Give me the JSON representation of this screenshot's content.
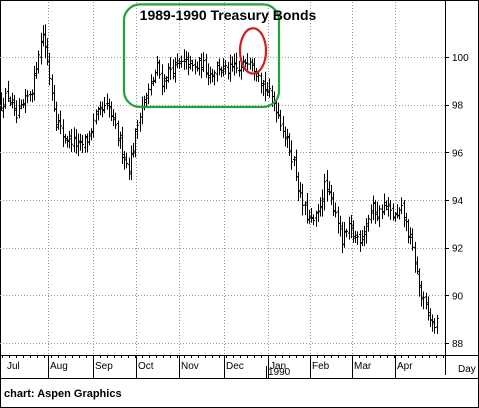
{
  "chart_data": {
    "type": "ohlc",
    "title": "1989-1990 Treasury Bonds",
    "y_ticks": [
      88,
      90,
      92,
      94,
      96,
      98,
      100
    ],
    "ylim": [
      87.5,
      102.3
    ],
    "month_labels": [
      "Jul",
      "Aug",
      "Sep",
      "Oct",
      "Nov",
      "Dec",
      "Jan",
      "Feb",
      "Mar",
      "Apr"
    ],
    "year_label": "1990",
    "x_axis_unit": "Day",
    "grid": true,
    "price_path": [
      [
        0,
        98.0
      ],
      [
        8,
        98.4
      ],
      [
        16,
        97.4
      ],
      [
        25,
        98.1
      ],
      [
        33,
        98.8
      ],
      [
        38,
        100.2
      ],
      [
        43,
        101.0
      ],
      [
        49,
        99.3
      ],
      [
        56,
        97.4
      ],
      [
        64,
        96.6
      ],
      [
        72,
        96.5
      ],
      [
        80,
        96.2
      ],
      [
        88,
        96.6
      ],
      [
        94,
        97.3
      ],
      [
        100,
        97.7
      ],
      [
        108,
        97.9
      ],
      [
        115,
        97.0
      ],
      [
        123,
        96.0
      ],
      [
        128,
        95.3
      ],
      [
        134,
        96.4
      ],
      [
        140,
        97.8
      ],
      [
        146,
        98.3
      ],
      [
        152,
        98.9
      ],
      [
        157,
        99.6
      ],
      [
        162,
        98.9
      ],
      [
        170,
        99.5
      ],
      [
        178,
        99.6
      ],
      [
        186,
        99.8
      ],
      [
        194,
        99.5
      ],
      [
        202,
        99.7
      ],
      [
        210,
        99.3
      ],
      [
        218,
        99.6
      ],
      [
        226,
        99.4
      ],
      [
        234,
        99.5
      ],
      [
        240,
        99.4
      ],
      [
        246,
        99.9
      ],
      [
        250,
        100.0
      ],
      [
        254,
        99.6
      ],
      [
        258,
        99.5
      ],
      [
        262,
        98.9
      ],
      [
        266,
        98.6
      ],
      [
        270,
        98.4
      ],
      [
        276,
        97.9
      ],
      [
        282,
        97.1
      ],
      [
        288,
        96.3
      ],
      [
        294,
        95.5
      ],
      [
        300,
        94.1
      ],
      [
        306,
        93.4
      ],
      [
        312,
        93.0
      ],
      [
        318,
        93.4
      ],
      [
        324,
        94.6
      ],
      [
        330,
        94.0
      ],
      [
        336,
        93.5
      ],
      [
        342,
        92.2
      ],
      [
        348,
        92.8
      ],
      [
        354,
        92.5
      ],
      [
        360,
        92.4
      ],
      [
        366,
        93.0
      ],
      [
        372,
        93.7
      ],
      [
        378,
        93.4
      ],
      [
        384,
        93.8
      ],
      [
        390,
        93.5
      ],
      [
        396,
        93.2
      ],
      [
        402,
        93.6
      ],
      [
        408,
        92.6
      ],
      [
        414,
        91.6
      ],
      [
        420,
        90.1
      ],
      [
        426,
        89.4
      ],
      [
        432,
        88.8
      ],
      [
        438,
        88.8
      ]
    ],
    "annotations": [
      {
        "shape": "rounded-rectangle",
        "color": "#22a23c",
        "x_range": [
          124,
          279
        ],
        "y_range": [
          97.9,
          102.2
        ]
      },
      {
        "shape": "ellipse",
        "color": "#d41e1e",
        "x_range": [
          240,
          266
        ],
        "y_range": [
          99.3,
          101.2
        ]
      }
    ]
  },
  "footer": {
    "credit": "chart: Aspen Graphics"
  }
}
